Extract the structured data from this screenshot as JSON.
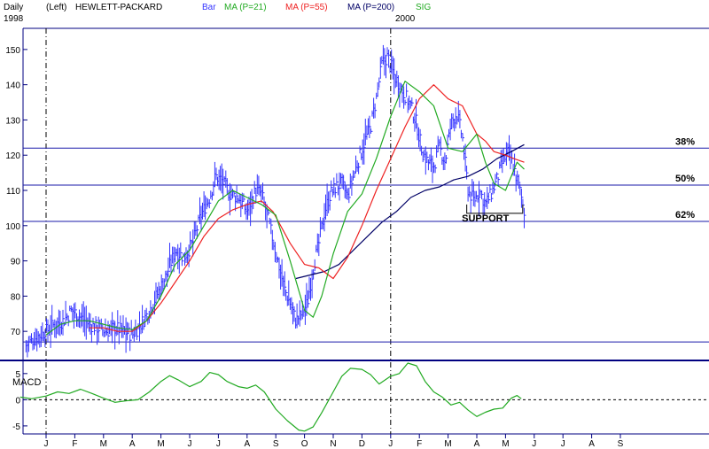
{
  "header": {
    "period": "Daily",
    "scale": "(Left)",
    "symbol": "HEWLETT-PACKARD",
    "year_start": "1998",
    "year_mid": "2000"
  },
  "legend": [
    {
      "label": "Bar",
      "color": "#3333ff"
    },
    {
      "label": "MA (P=21)",
      "color": "#22aa22"
    },
    {
      "label": "MA (P=55)",
      "color": "#ee2222"
    },
    {
      "label": "MA (P=200)",
      "color": "#000066"
    },
    {
      "label": "SIG",
      "color": "#22aa22"
    }
  ],
  "colors": {
    "bars": "#3333ff",
    "ma21": "#22aa22",
    "ma55": "#ee2222",
    "ma200": "#000066",
    "macd": "#22aa22",
    "frame": "#000080",
    "levels": "#1a1aaa",
    "text": "#000000"
  },
  "chart_data": [
    {
      "type": "line",
      "name": "price-panel",
      "months": [
        "J",
        "F",
        "M",
        "A",
        "M",
        "J",
        "J",
        "A",
        "S",
        "O",
        "N",
        "D",
        "J",
        "F",
        "M",
        "A",
        "M",
        "J",
        "J",
        "A",
        "S"
      ],
      "year_boundaries_month_index": [
        0,
        12
      ],
      "ylim": [
        63,
        156
      ],
      "yticks": [
        70,
        80,
        90,
        100,
        110,
        120,
        130,
        140,
        150
      ],
      "price_path": [
        [
          -0.7,
          66
        ],
        [
          -0.4,
          68
        ],
        [
          0.0,
          70
        ],
        [
          0.3,
          72
        ],
        [
          0.6,
          73
        ],
        [
          0.9,
          76
        ],
        [
          1.2,
          74
        ],
        [
          1.5,
          72
        ],
        [
          1.8,
          71
        ],
        [
          2.1,
          70
        ],
        [
          2.4,
          71
        ],
        [
          2.7,
          70
        ],
        [
          3.0,
          69
        ],
        [
          3.3,
          72
        ],
        [
          3.6,
          76
        ],
        [
          3.9,
          81
        ],
        [
          4.2,
          86
        ],
        [
          4.5,
          93
        ],
        [
          4.8,
          91
        ],
        [
          5.1,
          95
        ],
        [
          5.4,
          103
        ],
        [
          5.7,
          108
        ],
        [
          5.9,
          114
        ],
        [
          6.1,
          113
        ],
        [
          6.4,
          109
        ],
        [
          6.7,
          108
        ],
        [
          7.0,
          104
        ],
        [
          7.3,
          110
        ],
        [
          7.5,
          109
        ],
        [
          7.7,
          103
        ],
        [
          7.9,
          96
        ],
        [
          8.1,
          89
        ],
        [
          8.3,
          82
        ],
        [
          8.5,
          78
        ],
        [
          8.7,
          73
        ],
        [
          8.9,
          75
        ],
        [
          9.1,
          78
        ],
        [
          9.3,
          88
        ],
        [
          9.5,
          95
        ],
        [
          9.7,
          104
        ],
        [
          9.9,
          109
        ],
        [
          10.1,
          111
        ],
        [
          10.3,
          112
        ],
        [
          10.5,
          108
        ],
        [
          10.7,
          114
        ],
        [
          10.9,
          119
        ],
        [
          11.1,
          124
        ],
        [
          11.3,
          128
        ],
        [
          11.5,
          136
        ],
        [
          11.7,
          146
        ],
        [
          11.9,
          148
        ],
        [
          12.1,
          143
        ],
        [
          12.3,
          140
        ],
        [
          12.5,
          137
        ],
        [
          12.7,
          134
        ],
        [
          12.9,
          129
        ],
        [
          13.1,
          121
        ],
        [
          13.3,
          118
        ],
        [
          13.5,
          117
        ],
        [
          13.7,
          122
        ],
        [
          13.9,
          118
        ],
        [
          14.1,
          129
        ],
        [
          14.3,
          132
        ],
        [
          14.5,
          125
        ],
        [
          14.7,
          110
        ],
        [
          14.9,
          107
        ],
        [
          15.1,
          110
        ],
        [
          15.3,
          106
        ],
        [
          15.5,
          109
        ],
        [
          15.7,
          113
        ],
        [
          15.9,
          118
        ],
        [
          16.1,
          121
        ],
        [
          16.3,
          116
        ],
        [
          16.5,
          110
        ],
        [
          16.65,
          104
        ]
      ],
      "ma21": [
        [
          0.0,
          69
        ],
        [
          0.5,
          72
        ],
        [
          1.0,
          73
        ],
        [
          1.5,
          73
        ],
        [
          2.0,
          72
        ],
        [
          2.5,
          71
        ],
        [
          3.0,
          70.5
        ],
        [
          3.5,
          73
        ],
        [
          4.0,
          80
        ],
        [
          4.5,
          89
        ],
        [
          5.0,
          93
        ],
        [
          5.5,
          100
        ],
        [
          6.0,
          107
        ],
        [
          6.5,
          110
        ],
        [
          7.0,
          108
        ],
        [
          7.5,
          106
        ],
        [
          8.0,
          103
        ],
        [
          8.5,
          90
        ],
        [
          9.0,
          76
        ],
        [
          9.3,
          74
        ],
        [
          9.6,
          80
        ],
        [
          10.0,
          92
        ],
        [
          10.5,
          104
        ],
        [
          11.0,
          109
        ],
        [
          11.5,
          119
        ],
        [
          12.0,
          131
        ],
        [
          12.5,
          141
        ],
        [
          13.0,
          138
        ],
        [
          13.5,
          134
        ],
        [
          14.0,
          122
        ],
        [
          14.5,
          121
        ],
        [
          15.0,
          126
        ],
        [
          15.3,
          118
        ],
        [
          15.6,
          112
        ],
        [
          16.0,
          110
        ],
        [
          16.4,
          118
        ],
        [
          16.65,
          116
        ]
      ],
      "ma55": [
        [
          1.5,
          71
        ],
        [
          2.0,
          71
        ],
        [
          2.5,
          70
        ],
        [
          3.0,
          70
        ],
        [
          3.5,
          73
        ],
        [
          4.0,
          78
        ],
        [
          4.5,
          84
        ],
        [
          5.0,
          90
        ],
        [
          5.5,
          97
        ],
        [
          6.0,
          102
        ],
        [
          6.5,
          104.5
        ],
        [
          7.0,
          106
        ],
        [
          7.5,
          107
        ],
        [
          7.9,
          104
        ],
        [
          8.5,
          95
        ],
        [
          9.0,
          89
        ],
        [
          9.5,
          88
        ],
        [
          10.0,
          85
        ],
        [
          10.5,
          91
        ],
        [
          11.0,
          100
        ],
        [
          11.5,
          110
        ],
        [
          12.0,
          119
        ],
        [
          12.5,
          128
        ],
        [
          13.0,
          136
        ],
        [
          13.5,
          140
        ],
        [
          14.0,
          136
        ],
        [
          14.5,
          134
        ],
        [
          15.0,
          126
        ],
        [
          15.3,
          124
        ],
        [
          15.6,
          121
        ],
        [
          16.0,
          120
        ],
        [
          16.3,
          119
        ],
        [
          16.65,
          118
        ]
      ],
      "ma200": [
        [
          8.7,
          85
        ],
        [
          9.2,
          86
        ],
        [
          9.7,
          87
        ],
        [
          10.2,
          89
        ],
        [
          10.7,
          93
        ],
        [
          11.2,
          97
        ],
        [
          11.7,
          101
        ],
        [
          12.2,
          104
        ],
        [
          12.7,
          108
        ],
        [
          13.2,
          110
        ],
        [
          13.7,
          111
        ],
        [
          14.2,
          113
        ],
        [
          14.7,
          114
        ],
        [
          15.2,
          116
        ],
        [
          15.7,
          119
        ],
        [
          16.2,
          121
        ],
        [
          16.65,
          123
        ]
      ],
      "levels": [
        {
          "value": 122,
          "label": "38%"
        },
        {
          "value": 111.5,
          "label": "50%"
        },
        {
          "value": 101.2,
          "label": "62%"
        },
        {
          "value": 67,
          "label": ""
        }
      ],
      "annotation": {
        "text": "SUPPORT",
        "month_index": 15.3,
        "value": 104
      },
      "support_box": {
        "month_start": 14.65,
        "month_end": 16.6,
        "low": 103.5
      }
    },
    {
      "type": "line",
      "name": "macd-panel",
      "title": "MACD",
      "ylim": [
        -6.2,
        7.0
      ],
      "yticks": [
        5,
        0,
        -5
      ],
      "values": [
        [
          -0.9,
          0.5
        ],
        [
          -0.5,
          0.2
        ],
        [
          0.0,
          0.7
        ],
        [
          0.4,
          1.5
        ],
        [
          0.8,
          1.2
        ],
        [
          1.2,
          2.0
        ],
        [
          1.6,
          1.2
        ],
        [
          2.0,
          0.3
        ],
        [
          2.4,
          -0.5
        ],
        [
          2.8,
          -0.2
        ],
        [
          3.2,
          0.0
        ],
        [
          3.6,
          1.5
        ],
        [
          4.0,
          3.5
        ],
        [
          4.3,
          4.6
        ],
        [
          4.6,
          3.8
        ],
        [
          5.0,
          2.5
        ],
        [
          5.4,
          3.5
        ],
        [
          5.7,
          5.2
        ],
        [
          6.0,
          4.8
        ],
        [
          6.3,
          3.5
        ],
        [
          6.7,
          2.5
        ],
        [
          7.0,
          2.2
        ],
        [
          7.3,
          2.8
        ],
        [
          7.6,
          1.5
        ],
        [
          8.0,
          -1.8
        ],
        [
          8.4,
          -4.0
        ],
        [
          8.8,
          -5.8
        ],
        [
          9.0,
          -6.0
        ],
        [
          9.3,
          -5.2
        ],
        [
          9.6,
          -2.5
        ],
        [
          10.0,
          1.5
        ],
        [
          10.3,
          4.5
        ],
        [
          10.6,
          6.0
        ],
        [
          11.0,
          5.8
        ],
        [
          11.3,
          4.8
        ],
        [
          11.6,
          3.0
        ],
        [
          12.0,
          4.5
        ],
        [
          12.3,
          5.0
        ],
        [
          12.6,
          7.0
        ],
        [
          12.9,
          6.5
        ],
        [
          13.2,
          3.5
        ],
        [
          13.5,
          1.5
        ],
        [
          13.8,
          0.5
        ],
        [
          14.1,
          -1.0
        ],
        [
          14.4,
          -0.5
        ],
        [
          14.7,
          -2.0
        ],
        [
          15.0,
          -3.2
        ],
        [
          15.3,
          -2.4
        ],
        [
          15.6,
          -1.8
        ],
        [
          15.9,
          -1.6
        ],
        [
          16.2,
          0.3
        ],
        [
          16.4,
          0.8
        ],
        [
          16.55,
          0.2
        ]
      ]
    }
  ]
}
